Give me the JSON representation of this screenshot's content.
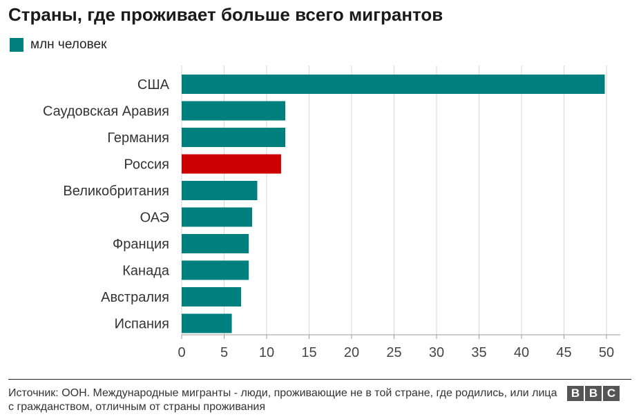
{
  "title": "Страны, где проживает больше всего мигрантов",
  "legend": {
    "label": "млн человек",
    "color": "#007f7f"
  },
  "colors": {
    "bar": "#007f7f",
    "highlight": "#cc0000",
    "grid": "#d6d6d6"
  },
  "chart_data": {
    "type": "bar",
    "orientation": "horizontal",
    "title": "Страны, где проживает больше всего мигрантов",
    "series": [
      {
        "name": "млн человек",
        "values": [
          49.8,
          12.2,
          12.2,
          11.7,
          8.9,
          8.3,
          7.9,
          7.9,
          7.0,
          5.9
        ]
      }
    ],
    "categories": [
      "США",
      "Саудовская Аравия",
      "Германия",
      "Россия",
      "Великобритания",
      "ОАЭ",
      "Франция",
      "Канада",
      "Австралия",
      "Испания"
    ],
    "highlighted_category": "Россия",
    "xlim": [
      0,
      50
    ],
    "xticks": [
      "0",
      "5",
      "10",
      "15",
      "20",
      "25",
      "30",
      "35",
      "40",
      "45",
      "50"
    ],
    "grid": "vertical"
  },
  "source": "Источник: ООН. Международные мигранты - люди, проживающие не в той стране, где родились, или лица с гражданством, отличным от страны проживания",
  "logo": {
    "letters": [
      "B",
      "B",
      "C"
    ]
  }
}
